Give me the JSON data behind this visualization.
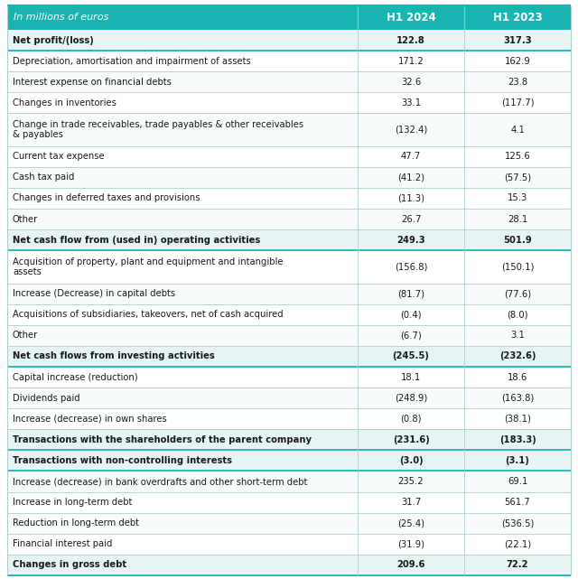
{
  "header_bg": "#1ab5b3",
  "header_text_color": "#ffffff",
  "header_italic_label": "In millions of euros",
  "col1_header": "H1 2024",
  "col2_header": "H1 2023",
  "rows": [
    {
      "label": "Net profit/(loss)",
      "v1": "122.8",
      "v2": "317.3",
      "bold": true,
      "multiline": false
    },
    {
      "label": "Depreciation, amortisation and impairment of assets",
      "v1": "171.2",
      "v2": "162.9",
      "bold": false,
      "multiline": false
    },
    {
      "label": "Interest expense on financial debts",
      "v1": "32.6",
      "v2": "23.8",
      "bold": false,
      "multiline": false
    },
    {
      "label": "Changes in inventories",
      "v1": "33.1",
      "v2": "(117.7)",
      "bold": false,
      "multiline": false
    },
    {
      "label": "Change in trade receivables, trade payables & other receivables\n& payables",
      "v1": "(132.4)",
      "v2": "4.1",
      "bold": false,
      "multiline": true
    },
    {
      "label": "Current tax expense",
      "v1": "47.7",
      "v2": "125.6",
      "bold": false,
      "multiline": false
    },
    {
      "label": "Cash tax paid",
      "v1": "(41.2)",
      "v2": "(57.5)",
      "bold": false,
      "multiline": false
    },
    {
      "label": "Changes in deferred taxes and provisions",
      "v1": "(11.3)",
      "v2": "15.3",
      "bold": false,
      "multiline": false
    },
    {
      "label": "Other",
      "v1": "26.7",
      "v2": "28.1",
      "bold": false,
      "multiline": false
    },
    {
      "label": "Net cash flow from (used in) operating activities",
      "v1": "249.3",
      "v2": "501.9",
      "bold": true,
      "multiline": false
    },
    {
      "label": "Acquisition of property, plant and equipment and intangible\nassets",
      "v1": "(156.8)",
      "v2": "(150.1)",
      "bold": false,
      "multiline": true
    },
    {
      "label": "Increase (Decrease) in capital debts",
      "v1": "(81.7)",
      "v2": "(77.6)",
      "bold": false,
      "multiline": false
    },
    {
      "label": "Acquisitions of subsidiaries, takeovers, net of cash acquired",
      "v1": "(0.4)",
      "v2": "(8.0)",
      "bold": false,
      "multiline": false
    },
    {
      "label": "Other",
      "v1": "(6.7)",
      "v2": "3.1",
      "bold": false,
      "multiline": false
    },
    {
      "label": "Net cash flows from investing activities",
      "v1": "(245.5)",
      "v2": "(232.6)",
      "bold": true,
      "multiline": false
    },
    {
      "label": "Capital increase (reduction)",
      "v1": "18.1",
      "v2": "18.6",
      "bold": false,
      "multiline": false
    },
    {
      "label": "Dividends paid",
      "v1": "(248.9)",
      "v2": "(163.8)",
      "bold": false,
      "multiline": false
    },
    {
      "label": "Increase (decrease) in own shares",
      "v1": "(0.8)",
      "v2": "(38.1)",
      "bold": false,
      "multiline": false
    },
    {
      "label": "Transactions with the shareholders of the parent company",
      "v1": "(231.6)",
      "v2": "(183.3)",
      "bold": true,
      "multiline": false
    },
    {
      "label": "Transactions with non-controlling interests",
      "v1": "(3.0)",
      "v2": "(3.1)",
      "bold": true,
      "multiline": false
    },
    {
      "label": "Increase (decrease) in bank overdrafts and other short-term debt",
      "v1": "235.2",
      "v2": "69.1",
      "bold": false,
      "multiline": false
    },
    {
      "label": "Increase in long-term debt",
      "v1": "31.7",
      "v2": "561.7",
      "bold": false,
      "multiline": false
    },
    {
      "label": "Reduction in long-term debt",
      "v1": "(25.4)",
      "v2": "(536.5)",
      "bold": false,
      "multiline": false
    },
    {
      "label": "Financial interest paid",
      "v1": "(31.9)",
      "v2": "(22.1)",
      "bold": false,
      "multiline": false
    },
    {
      "label": "Changes in gross debt",
      "v1": "209.6",
      "v2": "72.2",
      "bold": true,
      "multiline": false
    }
  ],
  "header_bg_color": "#1ab5b3",
  "bold_row_bg": "#e6f4f4",
  "normal_bg1": "#ffffff",
  "normal_bg2": "#f7fbfb",
  "divider_color": "#1ab5b3",
  "border_color": "#b0cece",
  "bold_border_color": "#1ab5b3",
  "text_color": "#1a1a1a",
  "label_fontsize": 7.2,
  "value_fontsize": 7.2,
  "header_fontsize": 8.5
}
